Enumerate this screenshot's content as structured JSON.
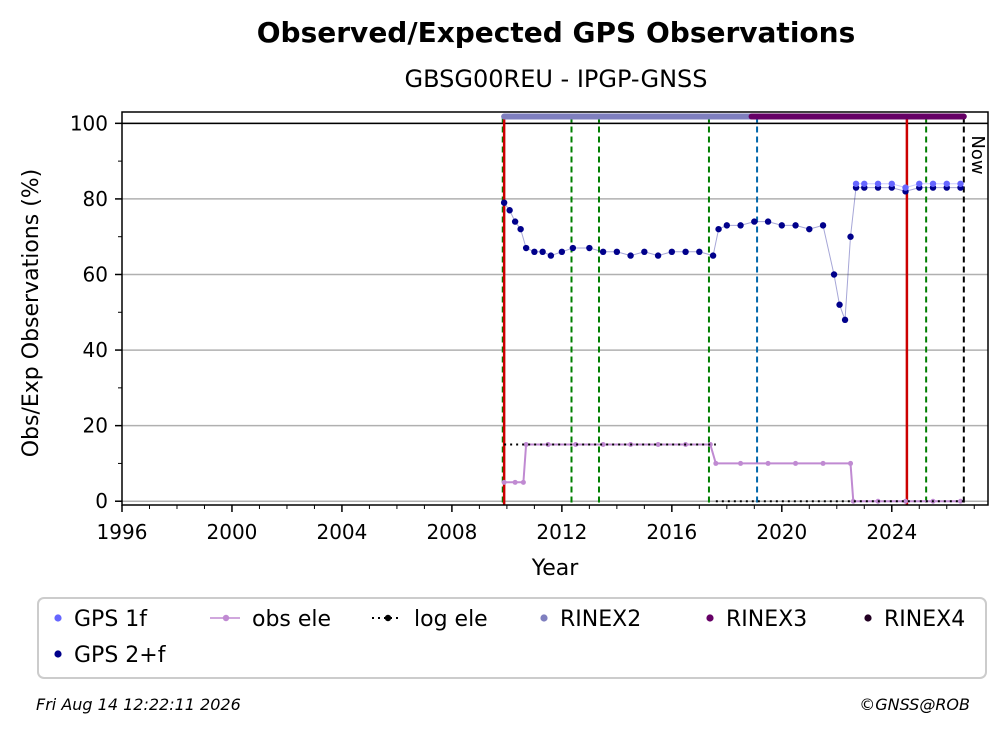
{
  "chart_data": {
    "type": "scatter",
    "title": "Observed/Expected GPS Observations",
    "subtitle": "GBSG00REU - IPGP-GNSS",
    "xlabel": "Year",
    "ylabel": "Obs/Exp Observations (%)",
    "xlim": [
      1996,
      2027.5
    ],
    "ylim": [
      -1,
      103
    ],
    "x_ticks": [
      "1996",
      "2000",
      "2004",
      "2008",
      "2012",
      "2016",
      "2020",
      "2024"
    ],
    "x_tick_values": [
      1996,
      2000,
      2004,
      2008,
      2012,
      2016,
      2020,
      2024
    ],
    "y_ticks": [
      "0",
      "20",
      "40",
      "60",
      "80",
      "100"
    ],
    "y_tick_values": [
      0,
      20,
      40,
      60,
      80,
      100
    ],
    "grid": "horizontal",
    "now_label": "Now",
    "now_x": 2026.62,
    "legend_position": "below",
    "colors": {
      "gps_1f": "#6666ff",
      "gps_2f": "#00008b",
      "obs_ele": "#c08ad2",
      "log_ele": "#000000",
      "rinex2": "#7f7fbf",
      "rinex3": "#660066",
      "rinex4": "#220022",
      "green_line": "#007f00",
      "red_line": "#cc0000",
      "blue_line": "#0066aa"
    },
    "series": [
      {
        "name": "GPS 2+f",
        "points": [
          [
            2009.9,
            79
          ],
          [
            2010.1,
            77
          ],
          [
            2010.3,
            74
          ],
          [
            2010.5,
            72
          ],
          [
            2010.7,
            67
          ],
          [
            2011.0,
            66
          ],
          [
            2011.3,
            66
          ],
          [
            2011.6,
            65
          ],
          [
            2012.0,
            66
          ],
          [
            2012.4,
            67
          ],
          [
            2013.0,
            67
          ],
          [
            2013.5,
            66
          ],
          [
            2014.0,
            66
          ],
          [
            2014.5,
            65
          ],
          [
            2015.0,
            66
          ],
          [
            2015.5,
            65
          ],
          [
            2016.0,
            66
          ],
          [
            2016.5,
            66
          ],
          [
            2017.0,
            66
          ],
          [
            2017.5,
            65
          ],
          [
            2017.7,
            72
          ],
          [
            2018.0,
            73
          ],
          [
            2018.5,
            73
          ],
          [
            2019.0,
            74
          ],
          [
            2019.5,
            74
          ],
          [
            2020.0,
            73
          ],
          [
            2020.5,
            73
          ],
          [
            2021.0,
            72
          ],
          [
            2021.5,
            73
          ],
          [
            2021.9,
            60
          ],
          [
            2022.1,
            52
          ],
          [
            2022.3,
            48
          ],
          [
            2022.5,
            70
          ],
          [
            2022.7,
            83
          ],
          [
            2023.0,
            83
          ],
          [
            2023.5,
            83
          ],
          [
            2024.0,
            83
          ],
          [
            2024.5,
            82
          ],
          [
            2025.0,
            83
          ],
          [
            2025.5,
            83
          ],
          [
            2026.0,
            83
          ],
          [
            2026.5,
            83
          ]
        ]
      },
      {
        "name": "GPS 1f",
        "points": [
          [
            2022.7,
            84
          ],
          [
            2023.0,
            84
          ],
          [
            2023.5,
            84
          ],
          [
            2024.0,
            84
          ],
          [
            2024.5,
            83
          ],
          [
            2025.0,
            84
          ],
          [
            2025.5,
            84
          ],
          [
            2026.0,
            84
          ],
          [
            2026.5,
            84
          ]
        ]
      },
      {
        "name": "obs ele",
        "points": [
          [
            2009.9,
            5
          ],
          [
            2010.3,
            5
          ],
          [
            2010.6,
            5
          ],
          [
            2010.7,
            15
          ],
          [
            2011.5,
            15
          ],
          [
            2012.5,
            15
          ],
          [
            2013.5,
            15
          ],
          [
            2014.5,
            15
          ],
          [
            2015.5,
            15
          ],
          [
            2016.5,
            15
          ],
          [
            2017.4,
            15
          ],
          [
            2017.6,
            10
          ],
          [
            2018.5,
            10
          ],
          [
            2019.5,
            10
          ],
          [
            2020.5,
            10
          ],
          [
            2021.5,
            10
          ],
          [
            2022.5,
            10
          ],
          [
            2022.6,
            0
          ],
          [
            2023.5,
            0
          ],
          [
            2024.5,
            0
          ],
          [
            2025.5,
            0
          ],
          [
            2026.5,
            0
          ]
        ]
      },
      {
        "name": "log ele",
        "segments": [
          [
            [
              2009.9,
              15
            ],
            [
              2017.6,
              15
            ]
          ],
          [
            [
              2017.6,
              0
            ],
            [
              2026.62,
              0
            ]
          ]
        ]
      },
      {
        "name": "RINEX2",
        "range": [
          2009.9,
          2018.9
        ],
        "y": 101.8
      },
      {
        "name": "RINEX3",
        "range": [
          2018.9,
          2026.62
        ],
        "y": 101.8
      },
      {
        "name": "RINEX4",
        "range": [],
        "y": 101.8
      }
    ],
    "vertical_lines": [
      {
        "x": 2009.85,
        "color": "green",
        "style": "dashed"
      },
      {
        "x": 2009.9,
        "color": "red",
        "style": "solid"
      },
      {
        "x": 2012.35,
        "color": "green",
        "style": "dashed"
      },
      {
        "x": 2013.35,
        "color": "green",
        "style": "dashed"
      },
      {
        "x": 2017.35,
        "color": "green",
        "style": "dashed"
      },
      {
        "x": 2019.1,
        "color": "blue",
        "style": "dashed"
      },
      {
        "x": 2024.55,
        "color": "red",
        "style": "solid"
      },
      {
        "x": 2025.25,
        "color": "green",
        "style": "dashed"
      }
    ],
    "legend": [
      {
        "label": "GPS 1f",
        "key": "gps_1f",
        "marker": "dot"
      },
      {
        "label": "obs ele",
        "key": "obs_ele",
        "marker": "dot-line"
      },
      {
        "label": "log ele",
        "key": "log_ele",
        "marker": "dot-dotted"
      },
      {
        "label": "RINEX2",
        "key": "rinex2",
        "marker": "dot"
      },
      {
        "label": "RINEX3",
        "key": "rinex3",
        "marker": "dot"
      },
      {
        "label": "RINEX4",
        "key": "rinex4",
        "marker": "dot"
      },
      {
        "label": "GPS 2+f",
        "key": "gps_2f",
        "marker": "dot"
      }
    ]
  },
  "footer": {
    "timestamp": "Fri Aug 14 12:22:11 2026",
    "credit": "©GNSS@ROB"
  }
}
